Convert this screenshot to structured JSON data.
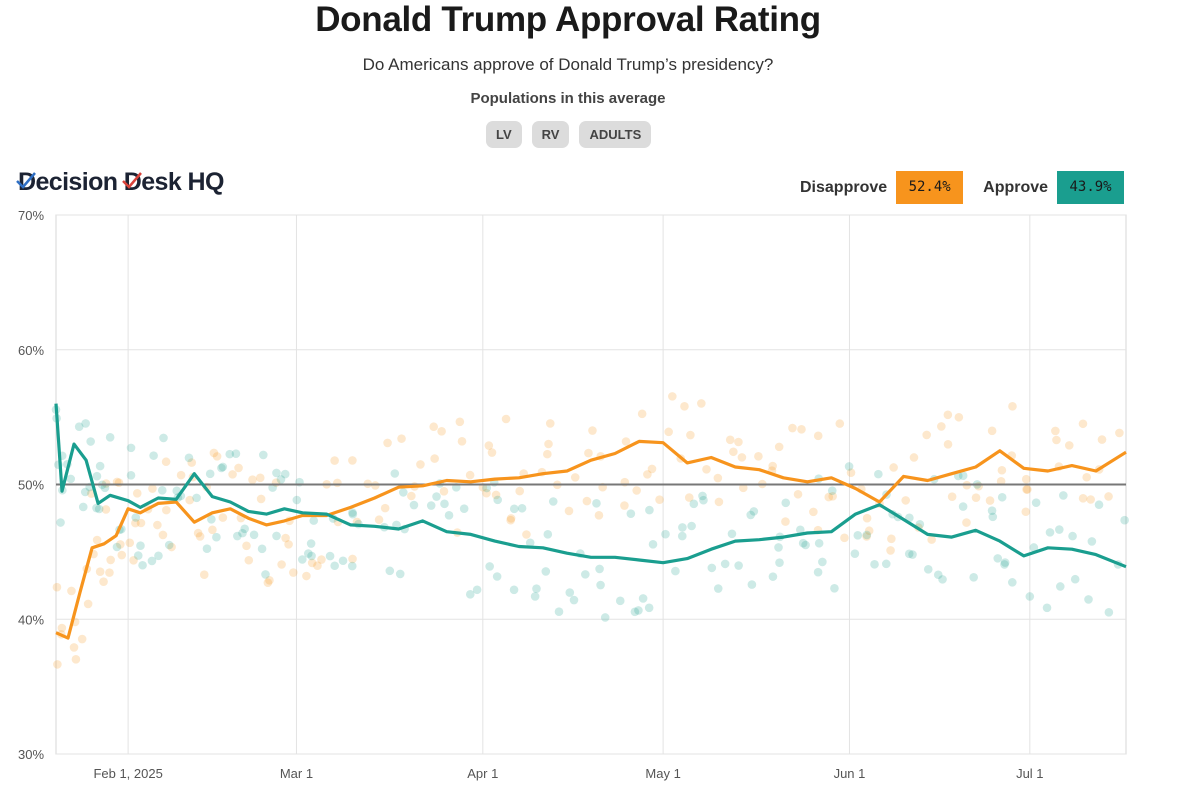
{
  "header": {
    "title": "Donald Trump Approval Rating",
    "subtitle": "Do Americans approve of Donald Trump’s presidency?",
    "populations_label": "Populations in this average",
    "populations": [
      "LV",
      "RV",
      "ADULTS"
    ]
  },
  "brand": {
    "logo_text_1": "Decision",
    "logo_text_2": "Desk HQ",
    "logo_first_letters": [
      "D",
      "D"
    ]
  },
  "legend": {
    "disapprove_label": "Disapprove",
    "disapprove_value": "52.4%",
    "approve_label": "Approve",
    "approve_value": "43.9%"
  },
  "colors": {
    "disapprove": "#f7941d",
    "approve": "#1a9e8f",
    "reference": "#777777",
    "grid": "#e3e3e3"
  },
  "chart_data": {
    "type": "line",
    "x_start": "2025-01-20",
    "x_end": "2025-07-17",
    "ylim": [
      30,
      70
    ],
    "yticks": [
      30,
      40,
      50,
      60,
      70
    ],
    "ytick_labels": [
      "30%",
      "40%",
      "50%",
      "60%",
      "70%"
    ],
    "xticks": [
      "2025-02-01",
      "2025-03-01",
      "2025-04-01",
      "2025-05-01",
      "2025-06-01",
      "2025-07-01"
    ],
    "xtick_labels": [
      "Feb 1, 2025",
      "Mar 1",
      "Apr 1",
      "May 1",
      "Jun 1",
      "Jul 1"
    ],
    "reference_line": 50,
    "grid": true,
    "series": [
      {
        "name": "Disapprove",
        "color": "#f7941d",
        "x": [
          "2025-01-20",
          "2025-01-22",
          "2025-01-24",
          "2025-01-26",
          "2025-01-28",
          "2025-01-30",
          "2025-02-01",
          "2025-02-03",
          "2025-02-06",
          "2025-02-09",
          "2025-02-12",
          "2025-02-15",
          "2025-02-18",
          "2025-02-21",
          "2025-02-24",
          "2025-02-27",
          "2025-03-02",
          "2025-03-06",
          "2025-03-10",
          "2025-03-14",
          "2025-03-18",
          "2025-03-22",
          "2025-03-26",
          "2025-03-30",
          "2025-04-03",
          "2025-04-07",
          "2025-04-11",
          "2025-04-15",
          "2025-04-19",
          "2025-04-23",
          "2025-04-27",
          "2025-05-01",
          "2025-05-05",
          "2025-05-09",
          "2025-05-13",
          "2025-05-17",
          "2025-05-21",
          "2025-05-25",
          "2025-05-29",
          "2025-06-02",
          "2025-06-06",
          "2025-06-10",
          "2025-06-14",
          "2025-06-18",
          "2025-06-22",
          "2025-06-26",
          "2025-06-30",
          "2025-07-04",
          "2025-07-08",
          "2025-07-12",
          "2025-07-17"
        ],
        "values": [
          39.0,
          38.6,
          42.0,
          45.3,
          45.6,
          46.2,
          48.2,
          47.9,
          48.6,
          48.7,
          47.2,
          47.9,
          48.2,
          47.5,
          47.0,
          47.3,
          47.7,
          47.7,
          48.3,
          49.0,
          49.8,
          49.9,
          50.3,
          50.2,
          50.4,
          50.5,
          50.8,
          51.0,
          51.8,
          52.3,
          53.2,
          53.1,
          51.6,
          52.0,
          51.3,
          51.1,
          50.5,
          50.2,
          50.5,
          49.7,
          48.7,
          50.6,
          50.3,
          50.8,
          51.3,
          52.5,
          51.2,
          51.0,
          51.4,
          51.0,
          52.4
        ]
      },
      {
        "name": "Approve",
        "color": "#1a9e8f",
        "x": [
          "2025-01-20",
          "2025-01-21",
          "2025-01-23",
          "2025-01-25",
          "2025-01-27",
          "2025-01-29",
          "2025-02-01",
          "2025-02-03",
          "2025-02-06",
          "2025-02-09",
          "2025-02-12",
          "2025-02-15",
          "2025-02-18",
          "2025-02-21",
          "2025-02-24",
          "2025-02-27",
          "2025-03-02",
          "2025-03-06",
          "2025-03-10",
          "2025-03-14",
          "2025-03-18",
          "2025-03-22",
          "2025-03-26",
          "2025-03-30",
          "2025-04-03",
          "2025-04-07",
          "2025-04-11",
          "2025-04-15",
          "2025-04-19",
          "2025-04-23",
          "2025-04-27",
          "2025-05-01",
          "2025-05-05",
          "2025-05-09",
          "2025-05-13",
          "2025-05-17",
          "2025-05-21",
          "2025-05-25",
          "2025-05-29",
          "2025-06-02",
          "2025-06-06",
          "2025-06-10",
          "2025-06-14",
          "2025-06-18",
          "2025-06-22",
          "2025-06-26",
          "2025-06-30",
          "2025-07-04",
          "2025-07-08",
          "2025-07-12",
          "2025-07-17"
        ],
        "values": [
          56.0,
          49.5,
          53.0,
          51.8,
          48.6,
          49.2,
          48.8,
          48.3,
          49.0,
          48.9,
          50.8,
          49.1,
          48.7,
          48.0,
          47.8,
          48.2,
          47.9,
          47.8,
          47.0,
          46.9,
          46.7,
          47.3,
          46.5,
          46.3,
          45.8,
          45.4,
          45.3,
          44.9,
          44.6,
          44.6,
          44.4,
          44.2,
          44.5,
          45.2,
          45.8,
          45.9,
          46.1,
          46.4,
          46.5,
          47.8,
          48.5,
          47.4,
          46.3,
          46.1,
          46.6,
          45.8,
          44.7,
          45.3,
          45.2,
          44.8,
          43.9
        ]
      }
    ]
  }
}
